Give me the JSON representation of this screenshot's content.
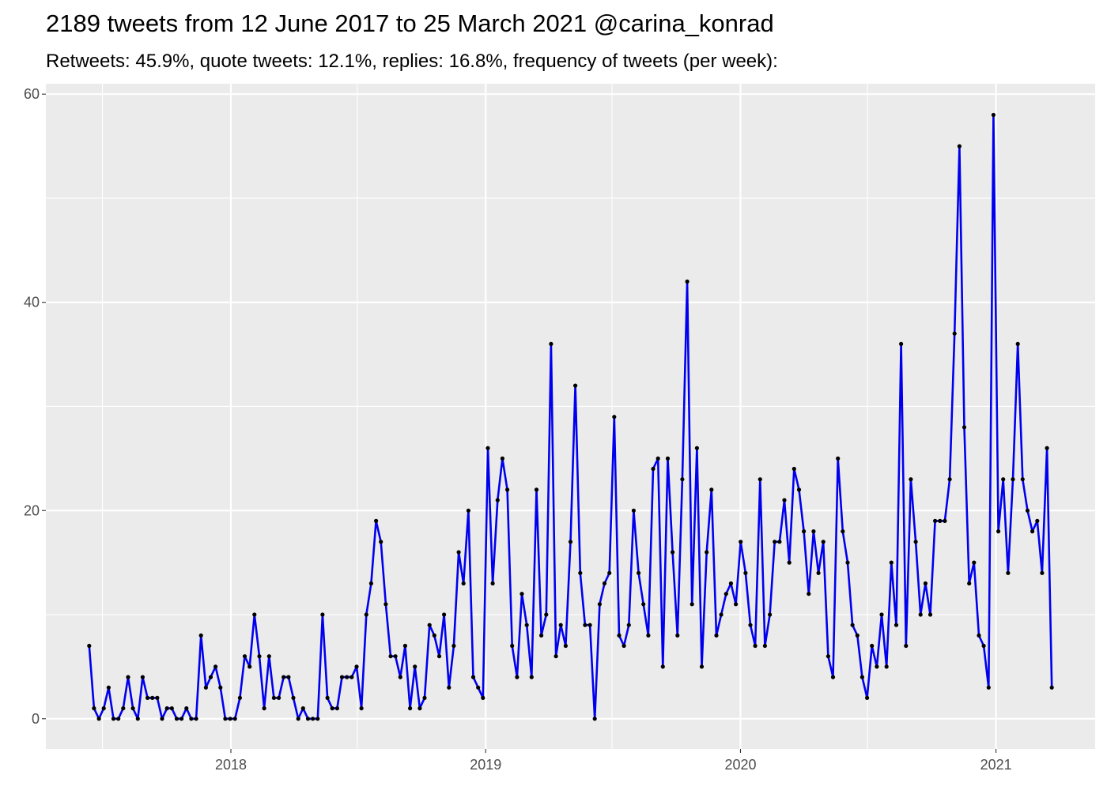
{
  "chart_data": {
    "type": "line",
    "title": "2189 tweets from 12 June 2017 to 25 March 2021 @carina_konrad",
    "subtitle": "Retweets: 45.9%, quote tweets: 12.1%, replies: 16.8%, frequency of tweets (per week):",
    "xlabel": "",
    "ylabel": "",
    "x_axis": {
      "type": "date",
      "start": "2017-06-12",
      "end": "2021-03-22",
      "ticks": [
        "2018",
        "2019",
        "2020",
        "2021"
      ]
    },
    "y_axis": {
      "ticks": [
        "0",
        "20",
        "40",
        "60"
      ]
    },
    "grid": true,
    "ylim": [
      -2.9,
      61
    ],
    "series": [
      {
        "color": "#0000ee",
        "marker_color": "#000000",
        "x_interval": "weekly",
        "values": [
          7,
          1,
          0,
          1,
          3,
          0,
          0,
          1,
          4,
          1,
          0,
          4,
          2,
          2,
          2,
          0,
          1,
          1,
          0,
          0,
          1,
          0,
          0,
          8,
          3,
          4,
          5,
          3,
          0,
          0,
          0,
          2,
          6,
          5,
          10,
          6,
          1,
          6,
          2,
          2,
          4,
          4,
          2,
          0,
          1,
          0,
          0,
          0,
          10,
          2,
          1,
          1,
          4,
          4,
          4,
          5,
          1,
          10,
          13,
          19,
          17,
          11,
          6,
          6,
          4,
          7,
          1,
          5,
          1,
          2,
          9,
          8,
          6,
          10,
          3,
          7,
          16,
          13,
          20,
          4,
          3,
          2,
          26,
          13,
          21,
          25,
          22,
          7,
          4,
          12,
          9,
          4,
          22,
          8,
          10,
          36,
          6,
          9,
          7,
          17,
          32,
          14,
          9,
          9,
          0,
          11,
          13,
          14,
          29,
          8,
          7,
          9,
          20,
          14,
          11,
          8,
          24,
          25,
          5,
          25,
          16,
          8,
          23,
          42,
          11,
          26,
          5,
          16,
          22,
          8,
          10,
          12,
          13,
          11,
          17,
          14,
          9,
          7,
          23,
          7,
          10,
          17,
          17,
          21,
          15,
          24,
          22,
          18,
          12,
          18,
          14,
          17,
          6,
          4,
          25,
          18,
          15,
          9,
          8,
          4,
          2,
          7,
          5,
          10,
          5,
          15,
          9,
          36,
          7,
          23,
          17,
          10,
          13,
          10,
          19,
          19,
          19,
          23,
          37,
          55,
          28,
          13,
          15,
          8,
          7,
          3,
          58,
          18,
          23,
          14,
          23,
          36,
          23,
          20,
          18,
          19,
          14,
          26,
          3
        ]
      }
    ]
  }
}
